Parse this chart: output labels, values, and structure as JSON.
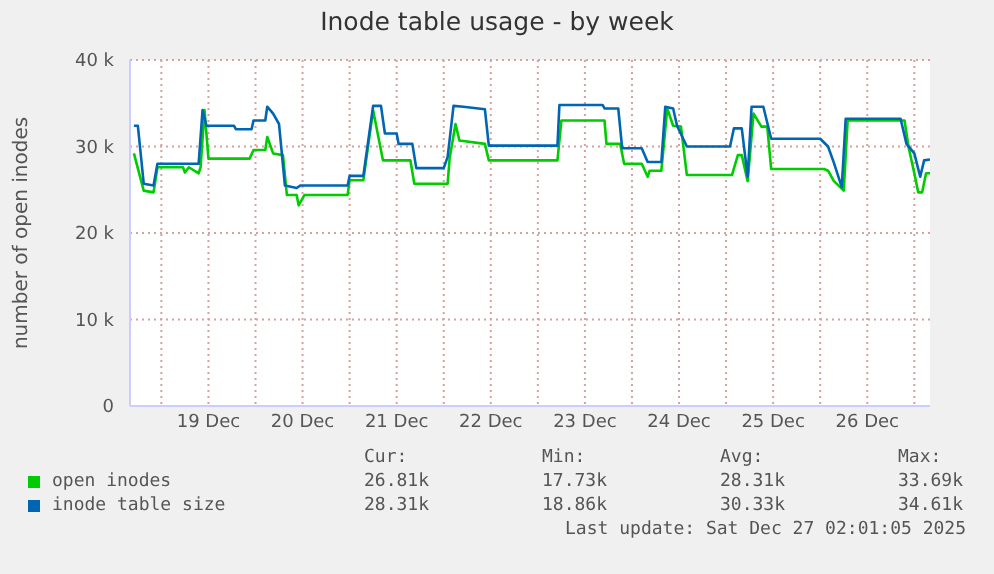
{
  "chart_data": {
    "type": "line",
    "title": "Inode table usage - by week",
    "ylabel": "number of open inodes",
    "xlim": [
      "2025-12-18T16:00",
      "2025-12-27T04:00"
    ],
    "xticks": [
      {
        "value": "2025-12-19T00:00",
        "label": null
      },
      {
        "value": "2025-12-19T12:00",
        "label": "19 Dec"
      },
      {
        "value": "2025-12-20T00:00",
        "label": null
      },
      {
        "value": "2025-12-20T12:00",
        "label": "20 Dec"
      },
      {
        "value": "2025-12-21T00:00",
        "label": null
      },
      {
        "value": "2025-12-21T12:00",
        "label": "21 Dec"
      },
      {
        "value": "2025-12-22T00:00",
        "label": null
      },
      {
        "value": "2025-12-22T12:00",
        "label": "22 Dec"
      },
      {
        "value": "2025-12-23T00:00",
        "label": null
      },
      {
        "value": "2025-12-23T12:00",
        "label": "23 Dec"
      },
      {
        "value": "2025-12-24T00:00",
        "label": null
      },
      {
        "value": "2025-12-24T12:00",
        "label": "24 Dec"
      },
      {
        "value": "2025-12-25T00:00",
        "label": null
      },
      {
        "value": "2025-12-25T12:00",
        "label": "25 Dec"
      },
      {
        "value": "2025-12-26T00:00",
        "label": null
      },
      {
        "value": "2025-12-26T12:00",
        "label": "26 Dec"
      },
      {
        "value": "2025-12-27T00:00",
        "label": null
      }
    ],
    "ylim": [
      0,
      40000
    ],
    "yticks": [
      0,
      {
        "value": 10000,
        "label": "10 k"
      },
      {
        "value": 20000,
        "label": "20 k"
      },
      {
        "value": 30000,
        "label": "30 k"
      },
      {
        "value": 40000,
        "label": "40 k"
      }
    ],
    "grid": true,
    "legend": "bottom",
    "series": [
      {
        "name": "open inodes",
        "color": "#00cc00",
        "x": [
          "2025-12-18T17:00",
          "2025-12-18T19:30",
          "2025-12-18T22:00",
          "2025-12-18T23:00",
          "2025-12-19T05:30",
          "2025-12-19T06:00",
          "2025-12-19T07:00",
          "2025-12-19T09:30",
          "2025-12-19T10:00",
          "2025-12-19T11:00",
          "2025-12-19T12:00",
          "2025-12-19T22:30",
          "2025-12-19T23:30",
          "2025-12-20T02:30",
          "2025-12-20T03:00",
          "2025-12-20T04:30",
          "2025-12-20T07:00",
          "2025-12-20T08:00",
          "2025-12-20T10:30",
          "2025-12-20T11:00",
          "2025-12-20T12:30",
          "2025-12-20T23:30",
          "2025-12-21T00:00",
          "2025-12-21T03:30",
          "2025-12-21T06:00",
          "2025-12-21T08:30",
          "2025-12-21T15:30",
          "2025-12-21T16:30",
          "2025-12-22T01:00",
          "2025-12-22T01:30",
          "2025-12-22T03:00",
          "2025-12-22T04:00",
          "2025-12-22T10:30",
          "2025-12-22T11:30",
          "2025-12-23T05:00",
          "2025-12-23T06:00",
          "2025-12-23T17:00",
          "2025-12-23T17:30",
          "2025-12-23T21:00",
          "2025-12-23T22:00",
          "2025-12-24T02:30",
          "2025-12-24T04:00",
          "2025-12-24T04:30",
          "2025-12-24T07:30",
          "2025-12-24T09:00",
          "2025-12-24T10:30",
          "2025-12-24T12:30",
          "2025-12-24T14:00",
          "2025-12-25T01:30",
          "2025-12-25T03:00",
          "2025-12-25T04:00",
          "2025-12-25T05:30",
          "2025-12-25T07:00",
          "2025-12-25T09:00",
          "2025-12-25T10:30",
          "2025-12-25T11:30",
          "2025-12-26T01:00",
          "2025-12-26T02:00",
          "2025-12-26T03:30",
          "2025-12-26T06:00",
          "2025-12-26T07:00",
          "2025-12-26T21:30",
          "2025-12-26T22:30",
          "2025-12-27T00:00",
          "2025-12-27T01:00",
          "2025-12-27T02:00",
          "2025-12-27T03:00",
          "2025-12-27T04:00"
        ],
        "values": [
          29200,
          24900,
          24700,
          27600,
          27600,
          27000,
          27600,
          26900,
          27600,
          34200,
          28600,
          28600,
          29600,
          29600,
          31100,
          29200,
          29000,
          24400,
          24400,
          23200,
          24400,
          24400,
          26100,
          26100,
          34200,
          28400,
          28400,
          25700,
          25700,
          28600,
          32600,
          30700,
          30300,
          28400,
          28400,
          33000,
          33000,
          30300,
          30300,
          28000,
          28000,
          26500,
          27200,
          27200,
          34400,
          32400,
          32300,
          26700,
          26700,
          29000,
          29000,
          26000,
          33800,
          32300,
          32300,
          27400,
          27400,
          27200,
          26000,
          24900,
          33000,
          33000,
          30000,
          26900,
          24700,
          24700,
          26900,
          26900
        ]
      },
      {
        "name": "inode table size",
        "color": "#0066b3",
        "x": [
          "2025-12-18T17:00",
          "2025-12-18T18:00",
          "2025-12-18T19:30",
          "2025-12-18T22:00",
          "2025-12-18T23:00",
          "2025-12-19T09:30",
          "2025-12-19T10:30",
          "2025-12-19T11:30",
          "2025-12-19T18:30",
          "2025-12-19T19:00",
          "2025-12-19T23:00",
          "2025-12-19T23:30",
          "2025-12-20T02:30",
          "2025-12-20T03:00",
          "2025-12-20T04:30",
          "2025-12-20T06:00",
          "2025-12-20T07:30",
          "2025-12-20T10:30",
          "2025-12-20T11:30",
          "2025-12-20T23:30",
          "2025-12-21T00:00",
          "2025-12-21T03:30",
          "2025-12-21T06:00",
          "2025-12-21T08:00",
          "2025-12-21T09:00",
          "2025-12-21T12:00",
          "2025-12-21T12:30",
          "2025-12-21T16:00",
          "2025-12-21T17:00",
          "2025-12-22T00:00",
          "2025-12-22T01:00",
          "2025-12-22T02:30",
          "2025-12-22T05:00",
          "2025-12-22T10:30",
          "2025-12-22T11:30",
          "2025-12-23T05:00",
          "2025-12-23T05:30",
          "2025-12-23T16:30",
          "2025-12-23T17:00",
          "2025-12-23T20:30",
          "2025-12-23T21:30",
          "2025-12-24T02:30",
          "2025-12-24T04:00",
          "2025-12-24T07:30",
          "2025-12-24T08:30",
          "2025-12-24T10:30",
          "2025-12-24T11:30",
          "2025-12-24T14:00",
          "2025-12-25T01:00",
          "2025-12-25T02:00",
          "2025-12-25T04:00",
          "2025-12-25T05:30",
          "2025-12-25T06:30",
          "2025-12-25T09:30",
          "2025-12-25T11:30",
          "2025-12-26T00:00",
          "2025-12-26T02:00",
          "2025-12-26T03:30",
          "2025-12-26T05:30",
          "2025-12-26T06:30",
          "2025-12-26T20:30",
          "2025-12-26T22:00",
          "2025-12-27T00:00",
          "2025-12-27T01:30",
          "2025-12-27T02:30",
          "2025-12-27T04:00"
        ],
        "values": [
          32400,
          32400,
          25700,
          25500,
          28000,
          28000,
          34200,
          32400,
          32400,
          32000,
          32000,
          33000,
          33000,
          34600,
          33800,
          32600,
          25500,
          25200,
          25500,
          25500,
          26600,
          26600,
          34700,
          34700,
          31500,
          31500,
          30300,
          30300,
          27500,
          27500,
          28800,
          34700,
          34600,
          34300,
          30100,
          30100,
          34800,
          34800,
          34400,
          34400,
          29800,
          29800,
          28200,
          28200,
          34600,
          34400,
          32400,
          30000,
          30000,
          32100,
          32100,
          26500,
          34600,
          34600,
          30900,
          30900,
          30000,
          28100,
          25300,
          33200,
          33200,
          30300,
          29200,
          26500,
          28400,
          28500
        ]
      }
    ],
    "annotations": [
      "Cur:",
      "Min:",
      "Avg:",
      "Max:",
      "26.81k",
      "17.73k",
      "28.31k",
      "33.69k",
      "28.31k",
      "18.86k",
      "30.33k",
      "34.61k",
      "Last update: Sat Dec 27 02:01:05 2025"
    ]
  }
}
